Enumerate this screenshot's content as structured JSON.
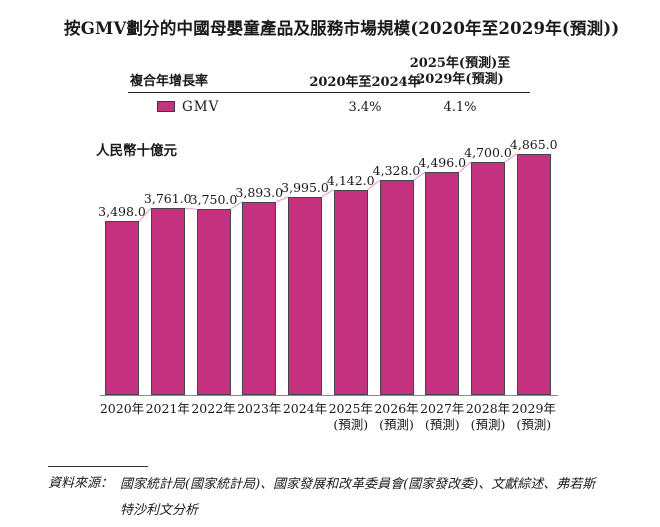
{
  "page": {
    "title": "按GMV劃分的中國母嬰童產品及服務市場規模(2020年至2029年(預測))"
  },
  "cagr_table": {
    "metric_header": "複合年增長率",
    "period1_header": "2020年至2024年",
    "period2_header_line1": "2025年(預測)至",
    "period2_header_line2": "2029年(預測)",
    "row": {
      "label": "GMV",
      "swatch_color": "#C4317F",
      "period1_value": "3.4%",
      "period2_value": "4.1%"
    }
  },
  "chart_data": {
    "type": "bar",
    "title": "按GMV劃分的中國母嬰童產品及服務市場規模(2020年至2029年(預測))",
    "ylabel": "人民幣十億元",
    "series_name": "GMV",
    "categories": [
      "2020年",
      "2021年",
      "2022年",
      "2023年",
      "2024年",
      "2025年(預測)",
      "2026年(預測)",
      "2027年(預測)",
      "2028年(預測)",
      "2029年(預測)"
    ],
    "values": [
      3498.0,
      3761.0,
      3750.0,
      3893.0,
      3995.0,
      4142.0,
      4328.0,
      4496.0,
      4700.0,
      4865.0
    ],
    "value_labels": [
      "3,498.0",
      "3,761.0",
      "3,750.0",
      "3,893.0",
      "3,995.0",
      "4,142.0",
      "4,328.0",
      "4,496.0",
      "4,700.0",
      "4,865.0"
    ],
    "ylim": [
      0,
      5000
    ],
    "grid": false,
    "legend_position": "table-top",
    "bar_color": "#C4317F",
    "bar_border_color": "#454545",
    "connector_color": "#E6AFCF",
    "axis_color": "#8A8A8A",
    "cagr_2020_2024": "3.4%",
    "cagr_2025_2029": "4.1%"
  },
  "footer": {
    "source_label": "資料來源：",
    "source_lines": [
      "國家統計局(國家統計局)、國家發展和改革委員會(國家發改委)、文獻綜述、弗若斯",
      "特沙利文分析"
    ]
  }
}
